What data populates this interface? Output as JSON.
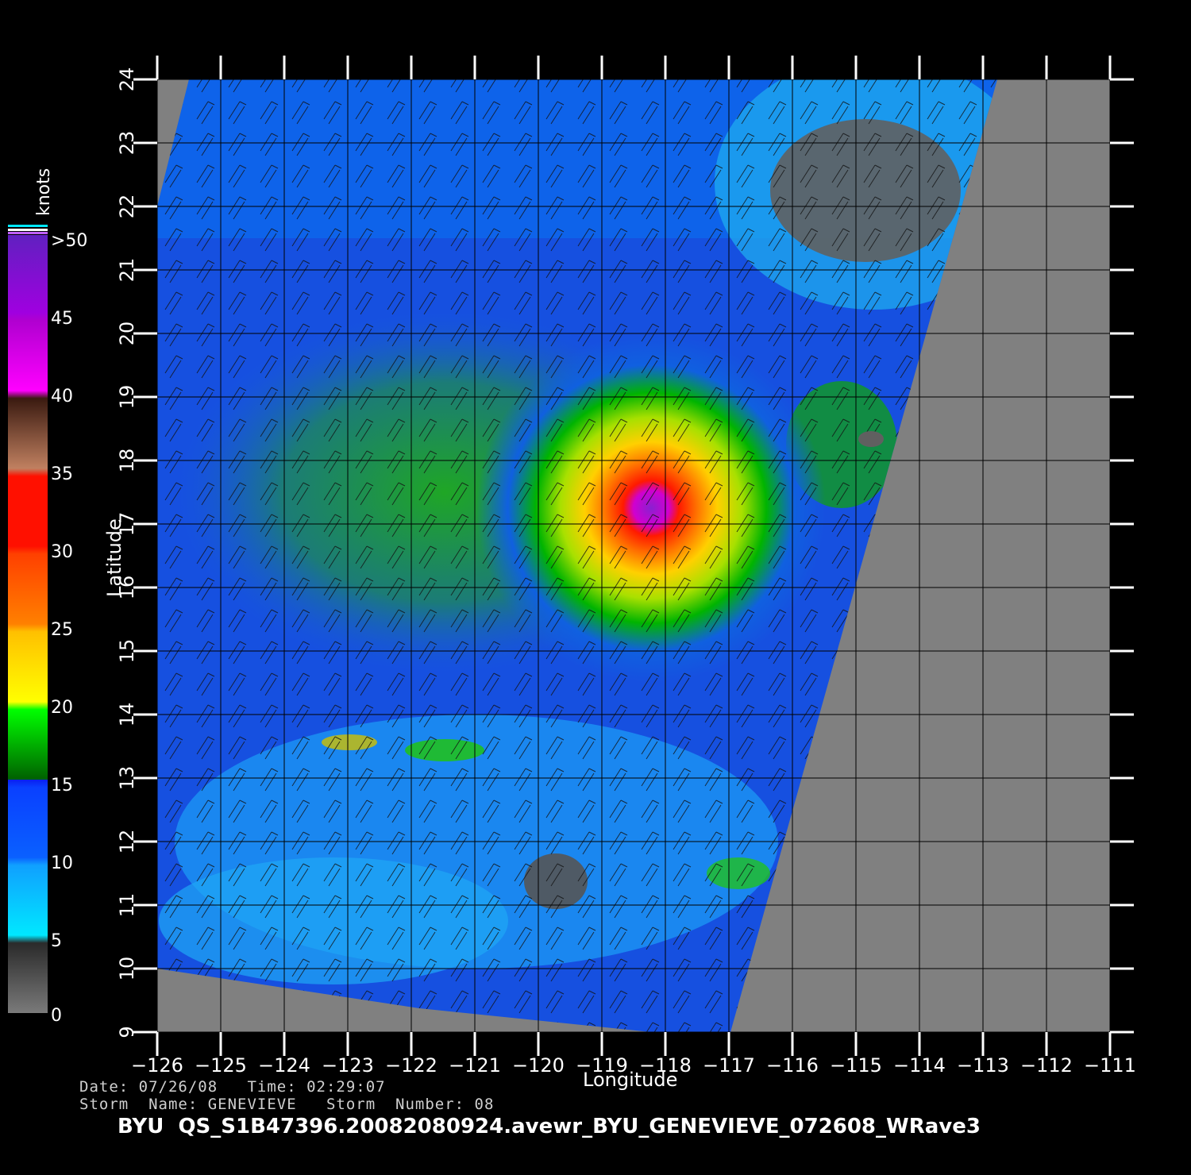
{
  "map": {
    "lon_ticks": [
      "-126",
      "-125",
      "-124",
      "-123",
      "-122",
      "-121",
      "-120",
      "-119",
      "-118",
      "-117",
      "-116",
      "-115",
      "-114",
      "-113",
      "-112",
      "-111"
    ],
    "lat_ticks": [
      "9",
      "10",
      "11",
      "12",
      "13",
      "14",
      "15",
      "16",
      "17",
      "18",
      "19",
      "20",
      "21",
      "22",
      "23",
      "24"
    ],
    "x_label": "Longitude",
    "y_label": "Latitude",
    "lon_range": [
      -126,
      -111
    ],
    "lat_range": [
      9,
      24
    ],
    "storm_center": {
      "lon": -117.8,
      "lat": 16.9
    }
  },
  "colorbar": {
    "unit": "knots",
    "labels": [
      ">50",
      "45",
      "40",
      "35",
      "30",
      "25",
      "20",
      "15",
      "10",
      "5",
      "0"
    ],
    "colors": {
      "0": "#7a7a7a",
      "5": "#00e5ff",
      "10": "#0a64ff",
      "15": "#0a1ef0",
      "20": "#00c800",
      "25": "#ffe000",
      "30": "#ff6a00",
      "35": "#ff1a00",
      "40": "#6a3a2a",
      "45": "#ff00ff",
      "50": "#7a20d0"
    }
  },
  "info": {
    "line1": "Date: 07/26/08   Time: 02:29:07",
    "line2": "Storm  Name: GENEVIEVE   Storm  Number: 08",
    "file_title": "BYU  QS_S1B47396.20082080924.avewr_BYU_GENEVIEVE_072608_WRave3"
  }
}
